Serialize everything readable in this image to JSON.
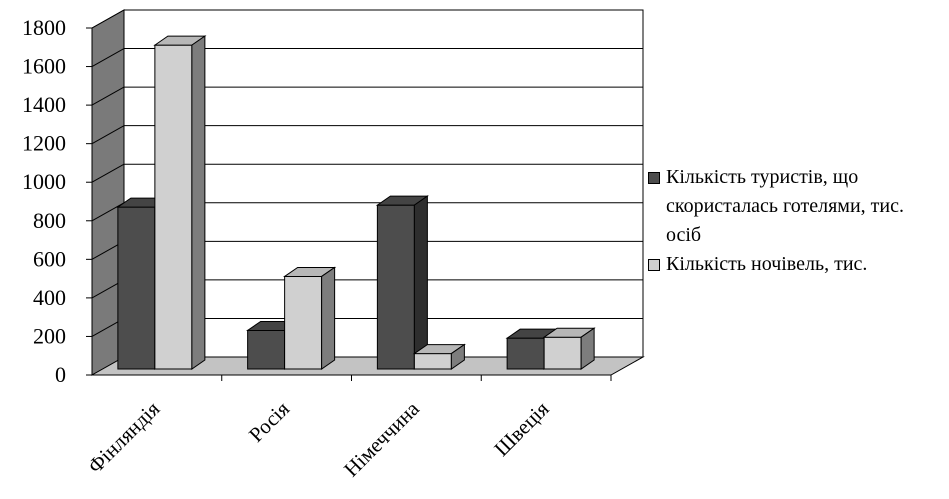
{
  "chart_data": {
    "type": "bar",
    "style": "3d-clustered-column",
    "categories": [
      "Фінляндія",
      "Росія",
      "Німеччина",
      "Швеція"
    ],
    "series": [
      {
        "name": "Кількість туристів, що скористалась готелями, тис. осіб",
        "values": [
          840,
          200,
          850,
          160
        ],
        "color": "#4d4d4d"
      },
      {
        "name": "Кількість ночівель, тис.",
        "values": [
          1680,
          480,
          80,
          165
        ],
        "color": "#d0d0d0"
      }
    ],
    "yticks": [
      0,
      200,
      400,
      600,
      800,
      1000,
      1200,
      1400,
      1600,
      1800
    ],
    "ylim": [
      0,
      1800
    ],
    "grid": true,
    "legend_position": "right",
    "title": "",
    "xlabel": "",
    "ylabel": "",
    "colors": {
      "wall": "#7a7a7a",
      "floor": "#c3c3c3",
      "gridline": "#000000"
    }
  }
}
